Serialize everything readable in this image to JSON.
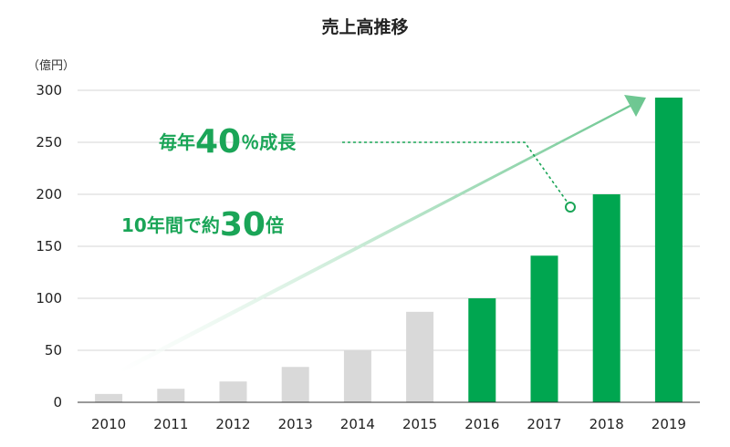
{
  "chart_data": {
    "type": "bar",
    "title": "売上高推移",
    "ylabel": "（億円）",
    "xlabel": "",
    "ylim": [
      0,
      300
    ],
    "yticks": [
      0,
      50,
      100,
      150,
      200,
      250,
      300
    ],
    "grid": true,
    "categories": [
      "2010",
      "2011",
      "2012",
      "2013",
      "2014",
      "2015",
      "2016",
      "2017",
      "2018",
      "2019"
    ],
    "values": [
      8,
      13,
      20,
      34,
      50,
      87,
      100,
      141,
      200,
      293
    ],
    "highlight_from_index": 6,
    "colors": {
      "base": "#d9d9d9",
      "highlight": "#00a650",
      "annotation": "#1aa557",
      "arrow": "#7fcf9e"
    },
    "annotations": {
      "growth": {
        "prefix": "毎年",
        "number": "40",
        "suffix": "％成長"
      },
      "multiple": {
        "prefix": "10年間で約",
        "number": "30",
        "suffix": "倍"
      }
    }
  }
}
